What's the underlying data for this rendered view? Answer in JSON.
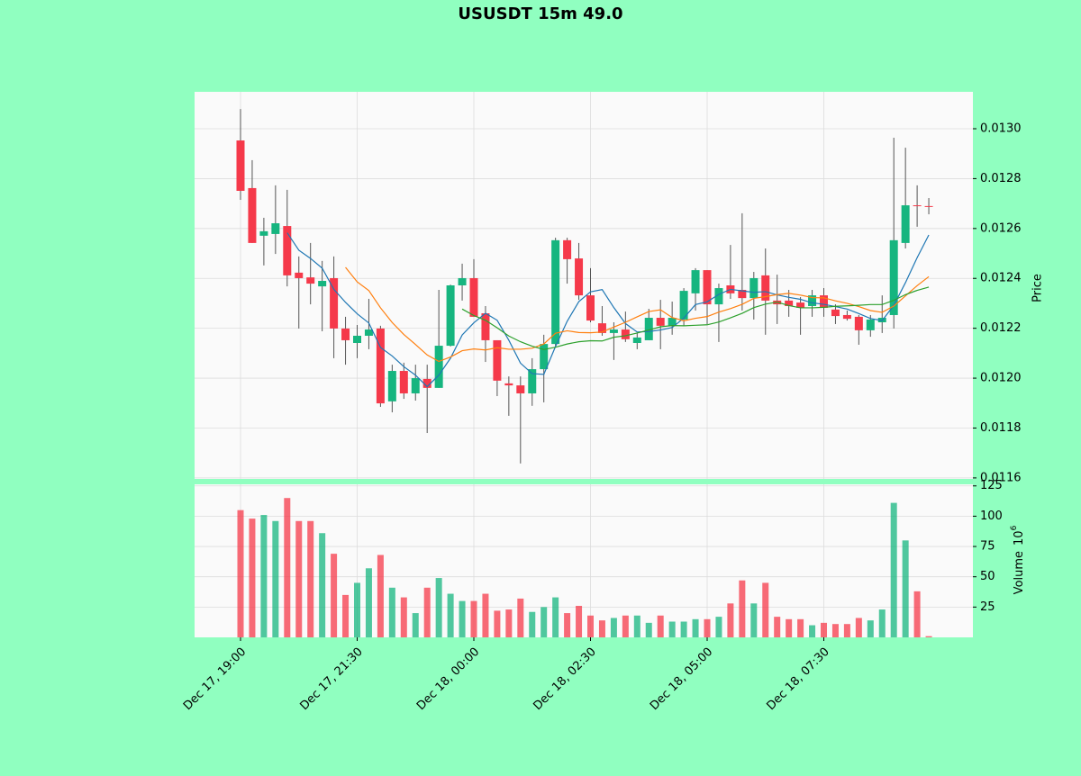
{
  "chart_data": {
    "type": "candlestick",
    "title": "USUSDT 15m 49.0",
    "categories": [
      "Dec 17, 19:00",
      null,
      null,
      null,
      null,
      null,
      null,
      null,
      null,
      null,
      "Dec 17, 21:30",
      null,
      null,
      null,
      null,
      null,
      null,
      null,
      null,
      null,
      "Dec 18, 00:00",
      null,
      null,
      null,
      null,
      null,
      null,
      null,
      null,
      null,
      "Dec 18, 02:30",
      null,
      null,
      null,
      null,
      null,
      null,
      null,
      null,
      null,
      "Dec 18, 05:00",
      null,
      null,
      null,
      null,
      null,
      null,
      null,
      null,
      null,
      "Dec 18, 07:30",
      null,
      null,
      null,
      null,
      null,
      null,
      null,
      null,
      null
    ],
    "open": [
      0.012953,
      0.012762,
      0.012571,
      0.012578,
      0.01261,
      0.012423,
      0.012404,
      0.012368,
      0.012401,
      0.012199,
      0.012141,
      0.01217,
      0.012199,
      0.011907,
      0.012029,
      0.011939,
      0.011997,
      0.011961,
      0.01213,
      0.012372,
      0.012401,
      0.01226,
      0.012152,
      0.011979,
      0.011971,
      0.011939,
      0.012036,
      0.012137,
      0.012553,
      0.01248,
      0.012332,
      0.01222,
      0.012181,
      0.012195,
      0.012141,
      0.012152,
      0.012242,
      0.01221,
      0.012235,
      0.01234,
      0.012433,
      0.012296,
      0.012372,
      0.012354,
      0.012321,
      0.012412,
      0.012311,
      0.012311,
      0.012303,
      0.012289,
      0.012332,
      0.012275,
      0.012253,
      0.012246,
      0.012192,
      0.012224,
      0.012253,
      0.012542,
      0.012693,
      0.01269
    ],
    "high": [
      0.013079,
      0.012874,
      0.012643,
      0.012773,
      0.012755,
      0.012488,
      0.012542,
      0.01247,
      0.012488,
      0.012246,
      0.012213,
      0.012318,
      0.01221,
      0.012054,
      0.012062,
      0.012054,
      0.012054,
      0.012354,
      0.012375,
      0.012459,
      0.012477,
      0.012289,
      0.012152,
      0.012007,
      0.012007,
      0.01208,
      0.012174,
      0.012563,
      0.012563,
      0.012542,
      0.012441,
      0.012289,
      0.012224,
      0.012267,
      0.012181,
      0.012278,
      0.012314,
      0.012307,
      0.012361,
      0.012441,
      0.012433,
      0.012379,
      0.012534,
      0.012661,
      0.012426,
      0.01252,
      0.012415,
      0.012354,
      0.012325,
      0.012354,
      0.012361,
      0.012296,
      0.012271,
      0.012253,
      0.012253,
      0.012332,
      0.012964,
      0.012924,
      0.012773,
      0.012722
    ],
    "low": [
      0.012715,
      0.012542,
      0.012452,
      0.012498,
      0.012368,
      0.012199,
      0.012296,
      0.012188,
      0.01208,
      0.012054,
      0.01208,
      0.012116,
      0.011885,
      0.011863,
      0.011917,
      0.01191,
      0.01178,
      0.011961,
      0.012127,
      0.012311,
      0.012246,
      0.012065,
      0.011928,
      0.011849,
      0.011658,
      0.011889,
      0.011903,
      0.012127,
      0.012379,
      0.012314,
      0.012224,
      0.01217,
      0.012073,
      0.012145,
      0.012116,
      0.012152,
      0.012116,
      0.012174,
      0.01221,
      0.012271,
      0.012217,
      0.012145,
      0.012318,
      0.012271,
      0.012235,
      0.012174,
      0.012217,
      0.012246,
      0.012174,
      0.012246,
      0.012246,
      0.012217,
      0.012231,
      0.012134,
      0.012166,
      0.012181,
      0.012199,
      0.01252,
      0.012607,
      0.012657
    ],
    "close": [
      0.012751,
      0.012542,
      0.012589,
      0.012621,
      0.012412,
      0.012401,
      0.012379,
      0.01239,
      0.012199,
      0.012152,
      0.01217,
      0.012195,
      0.011899,
      0.012029,
      0.011939,
      0.012,
      0.011961,
      0.01213,
      0.012372,
      0.012401,
      0.012246,
      0.012152,
      0.01199,
      0.011971,
      0.011939,
      0.012036,
      0.012137,
      0.012553,
      0.012477,
      0.012332,
      0.012231,
      0.012181,
      0.012195,
      0.012156,
      0.012163,
      0.012242,
      0.01221,
      0.012242,
      0.01235,
      0.012433,
      0.012296,
      0.012361,
      0.01234,
      0.012321,
      0.012401,
      0.012311,
      0.012296,
      0.012289,
      0.012282,
      0.012332,
      0.012282,
      0.012249,
      0.012238,
      0.012192,
      0.012235,
      0.012242,
      0.012553,
      0.012693,
      0.012693,
      0.01269
    ],
    "volume": [
      105,
      98,
      101,
      96,
      115,
      96,
      96,
      86,
      69,
      35,
      45,
      57,
      68,
      41,
      33,
      20,
      41,
      49,
      36,
      30,
      30,
      36,
      22,
      23,
      32,
      21,
      25,
      33,
      20,
      26,
      18,
      14,
      16,
      18,
      18,
      12,
      18,
      13,
      13,
      15,
      15,
      17,
      28,
      47,
      28,
      45,
      17,
      15,
      15,
      10,
      12,
      11,
      11,
      16,
      14,
      23,
      111,
      80,
      38,
      1
    ],
    "moving_averages": [
      {
        "color": "#1f77b4",
        "values": [
          null,
          null,
          null,
          null,
          0.012583,
          0.012513,
          0.01248,
          0.012441,
          0.012356,
          0.012304,
          0.012258,
          0.012221,
          0.012123,
          0.012089,
          0.012046,
          0.012012,
          0.011966,
          0.012012,
          0.01208,
          0.012173,
          0.012222,
          0.01226,
          0.012232,
          0.012152,
          0.01206,
          0.012018,
          0.012015,
          0.012127,
          0.012228,
          0.012307,
          0.012346,
          0.012355,
          0.012283,
          0.012219,
          0.012185,
          0.012187,
          0.012193,
          0.012203,
          0.012241,
          0.012295,
          0.012306,
          0.012336,
          0.012356,
          0.01235,
          0.012344,
          0.012347,
          0.012334,
          0.012324,
          0.012316,
          0.012302,
          0.012296,
          0.012287,
          0.012277,
          0.012259,
          0.012239,
          0.012231,
          0.012292,
          0.012383,
          0.012483,
          0.012574
        ]
      },
      {
        "color": "#ff7f0e",
        "values": [
          null,
          null,
          null,
          null,
          null,
          null,
          null,
          null,
          null,
          0.012444,
          0.012386,
          0.012351,
          0.012282,
          0.012223,
          0.012175,
          0.012135,
          0.012093,
          0.012067,
          0.012085,
          0.01211,
          0.012117,
          0.012113,
          0.012122,
          0.012116,
          0.012116,
          0.01212,
          0.012137,
          0.01218,
          0.01219,
          0.012183,
          0.012182,
          0.012185,
          0.012205,
          0.012224,
          0.012246,
          0.012267,
          0.012274,
          0.012243,
          0.01223,
          0.01224,
          0.012247,
          0.012265,
          0.012279,
          0.012296,
          0.01232,
          0.012327,
          0.012335,
          0.01234,
          0.012333,
          0.012323,
          0.012322,
          0.01231,
          0.0123,
          0.012287,
          0.012271,
          0.012264,
          0.012289,
          0.01233,
          0.012371,
          0.012407
        ]
      },
      {
        "color": "#2ca02c",
        "values": [
          null,
          null,
          null,
          null,
          null,
          null,
          null,
          null,
          null,
          null,
          null,
          null,
          null,
          null,
          null,
          null,
          null,
          null,
          null,
          0.012277,
          0.012251,
          0.012232,
          0.012202,
          0.012169,
          0.012146,
          0.012128,
          0.012115,
          0.012124,
          0.012137,
          0.012146,
          0.01215,
          0.012149,
          0.012164,
          0.01217,
          0.012181,
          0.012193,
          0.012206,
          0.012211,
          0.01221,
          0.012212,
          0.012214,
          0.012225,
          0.012242,
          0.01226,
          0.012283,
          0.012297,
          0.012305,
          0.012291,
          0.012282,
          0.012282,
          0.012284,
          0.012288,
          0.01229,
          0.012292,
          0.012295,
          0.012295,
          0.012312,
          0.012335,
          0.012352,
          0.012365
        ]
      }
    ],
    "up_color": "#16b57f",
    "down_color": "#f5394a",
    "ylabel": "Price",
    "ylim": [
      0.011596,
      0.013148
    ],
    "yticks": [
      {
        "value": 0.0116,
        "label": "0.0116"
      },
      0.0118,
      {
        "value": 0.012,
        "label": "0.0120"
      },
      0.0122,
      0.0124,
      0.0126,
      0.0128,
      {
        "value": 0.013,
        "label": "0.0130"
      }
    ],
    "volume_ylabel": "Volume",
    "volume_unit_base": "10",
    "volume_unit_exponent": "6",
    "volume_ylim": [
      0,
      126.3
    ],
    "volume_yticks": [
      25,
      50,
      75,
      100,
      125
    ],
    "grid": true
  }
}
